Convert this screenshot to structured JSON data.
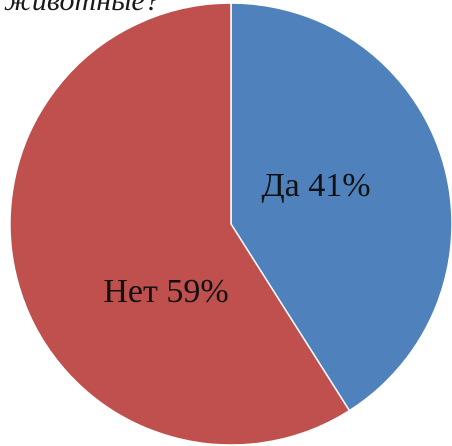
{
  "chart_data": {
    "type": "pie",
    "title": "животные?",
    "categories": [
      "Да",
      "Нет"
    ],
    "values": [
      41,
      59
    ],
    "data_labels": [
      "Да 41%",
      "Нет  59%"
    ],
    "colors": [
      "#4F81BD",
      "#C0504D"
    ],
    "start_angle": "12 o'clock",
    "direction": "clockwise"
  }
}
